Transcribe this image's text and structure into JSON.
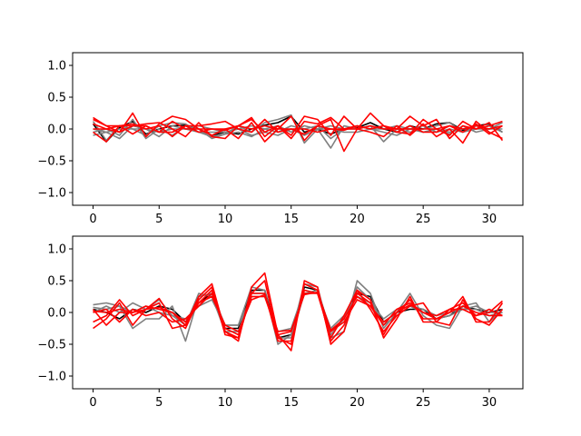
{
  "chart_data": [
    {
      "type": "line",
      "title": "",
      "xlabel": "",
      "ylabel": "",
      "xlim": [
        -1.55,
        32.55
      ],
      "ylim": [
        -1.2,
        1.2
      ],
      "xticks": [
        0,
        5,
        10,
        15,
        20,
        25,
        30
      ],
      "xtick_labels": [
        "0",
        "5",
        "10",
        "15",
        "20",
        "25",
        "30"
      ],
      "yticks": [
        -1.0,
        -0.5,
        0.0,
        0.5,
        1.0
      ],
      "ytick_labels": [
        "−1.0",
        "−0.5",
        "0.0",
        "0.5",
        "1.0"
      ],
      "grid": false,
      "x": [
        0,
        1,
        2,
        3,
        4,
        5,
        6,
        7,
        8,
        9,
        10,
        11,
        12,
        13,
        14,
        15,
        16,
        17,
        18,
        19,
        20,
        21,
        22,
        23,
        24,
        25,
        26,
        27,
        28,
        29,
        30,
        31
      ],
      "series": [
        {
          "color": "#000000",
          "values": [
            0.08,
            -0.2,
            0.02,
            0.12,
            -0.08,
            0.0,
            0.05,
            0.06,
            0.0,
            -0.1,
            -0.05,
            -0.08,
            0.0,
            0.06,
            0.1,
            0.2,
            -0.05,
            0.0,
            -0.08,
            0.0,
            0.02,
            0.1,
            0.0,
            -0.05,
            0.05,
            0.0,
            0.08,
            0.1,
            -0.02,
            0.05,
            0.08,
            -0.05
          ]
        },
        {
          "color": "#808080",
          "values": [
            0.12,
            -0.18,
            0.05,
            0.0,
            -0.1,
            0.05,
            0.1,
            0.08,
            -0.05,
            -0.12,
            -0.08,
            0.05,
            -0.05,
            0.1,
            0.15,
            0.22,
            -0.22,
            0.0,
            -0.3,
            0.05,
            0.0,
            0.05,
            -0.2,
            0.0,
            -0.05,
            0.0,
            0.05,
            0.1,
            -0.05,
            0.0,
            0.05,
            -0.05
          ]
        },
        {
          "color": "#808080",
          "values": [
            -0.05,
            0.0,
            -0.1,
            0.15,
            -0.15,
            0.0,
            -0.1,
            0.05,
            0.0,
            -0.15,
            -0.08,
            -0.05,
            -0.12,
            0.0,
            -0.05,
            0.05,
            0.0,
            0.05,
            -0.15,
            0.0,
            0.05,
            0.0,
            -0.05,
            -0.1,
            0.0,
            -0.05,
            0.0,
            -0.08,
            0.05,
            -0.05,
            0.0,
            0.1
          ]
        },
        {
          "color": "#808080",
          "values": [
            0.0,
            -0.05,
            0.0,
            0.0,
            0.0,
            -0.12,
            0.05,
            0.0,
            0.05,
            0.0,
            -0.05,
            0.0,
            -0.1,
            -0.05,
            -0.1,
            0.0,
            -0.1,
            0.0,
            0.05,
            0.0,
            0.0,
            0.05,
            0.0,
            0.05,
            0.0,
            0.05,
            -0.05,
            0.0,
            -0.05,
            0.05,
            0.0,
            0.05
          ]
        },
        {
          "color": "#808080",
          "values": [
            -0.1,
            -0.05,
            -0.15,
            0.05,
            0.0,
            -0.05,
            0.0,
            0.0,
            -0.05,
            -0.05,
            -0.05,
            0.0,
            0.05,
            0.0,
            0.05,
            -0.05,
            0.05,
            0.0,
            0.0,
            -0.05,
            -0.05,
            0.0,
            0.0,
            0.0,
            0.0,
            -0.05,
            0.0,
            -0.05,
            0.0,
            0.0,
            0.0,
            0.0
          ]
        },
        {
          "color": "#ff0000",
          "values": [
            0.18,
            0.05,
            -0.05,
            0.25,
            -0.12,
            0.08,
            0.2,
            0.15,
            0.0,
            -0.1,
            0.0,
            -0.15,
            0.1,
            -0.2,
            0.0,
            0.2,
            -0.18,
            0.05,
            0.15,
            -0.35,
            0.0,
            0.25,
            0.05,
            0.0,
            0.2,
            0.05,
            0.15,
            -0.15,
            0.05,
            0.0,
            0.1,
            -0.18
          ]
        },
        {
          "color": "#ff0000",
          "values": [
            -0.05,
            -0.2,
            0.05,
            0.05,
            0.08,
            0.1,
            0.0,
            -0.12,
            0.1,
            -0.12,
            -0.15,
            0.05,
            0.15,
            -0.05,
            0.05,
            -0.1,
            0.2,
            0.15,
            -0.1,
            0.2,
            0.0,
            -0.05,
            -0.12,
            0.05,
            -0.1,
            0.08,
            -0.12,
            0.0,
            -0.22,
            0.12,
            -0.05,
            -0.15
          ]
        },
        {
          "color": "#ff0000",
          "values": [
            0.15,
            0.05,
            0.05,
            -0.08,
            0.05,
            -0.05,
            -0.05,
            0.05,
            -0.05,
            0.0,
            0.0,
            0.05,
            0.18,
            -0.12,
            0.05,
            -0.15,
            0.12,
            0.08,
            0.18,
            0.0,
            0.05,
            0.0,
            0.05,
            -0.05,
            -0.08,
            0.15,
            0.0,
            -0.1,
            0.12,
            0.0,
            0.05,
            0.12
          ]
        },
        {
          "color": "#ff0000",
          "values": [
            0.0,
            0.0,
            0.05,
            0.08,
            0.0,
            0.05,
            -0.12,
            0.05,
            0.05,
            0.08,
            0.12,
            0.0,
            -0.05,
            0.15,
            -0.05,
            0.0,
            -0.08,
            0.05,
            0.0,
            -0.02,
            0.05,
            0.0,
            0.05,
            -0.05,
            0.05,
            -0.05,
            -0.05,
            0.05,
            -0.05,
            0.08,
            -0.08,
            0.05
          ]
        },
        {
          "color": "#ff0000",
          "values": [
            0.08,
            0.0,
            -0.05,
            0.05,
            0.05,
            -0.05,
            0.12,
            0.0,
            0.0,
            0.0,
            -0.02,
            0.05,
            0.0,
            0.05,
            0.0,
            0.0,
            0.0,
            -0.05,
            0.0,
            0.0,
            0.0,
            0.05,
            0.0,
            0.0,
            0.0,
            0.0,
            0.0,
            0.05,
            0.0,
            0.05,
            0.0,
            0.05
          ]
        }
      ]
    },
    {
      "type": "line",
      "title": "",
      "xlabel": "",
      "ylabel": "",
      "xlim": [
        -1.55,
        32.55
      ],
      "ylim": [
        -1.2,
        1.2
      ],
      "xticks": [
        0,
        5,
        10,
        15,
        20,
        25,
        30
      ],
      "xtick_labels": [
        "0",
        "5",
        "10",
        "15",
        "20",
        "25",
        "30"
      ],
      "yticks": [
        -1.0,
        -0.5,
        0.0,
        0.5,
        1.0
      ],
      "ytick_labels": [
        "−1.0",
        "−0.5",
        "0.0",
        "0.5",
        "1.0"
      ],
      "grid": false,
      "x": [
        0,
        1,
        2,
        3,
        4,
        5,
        6,
        7,
        8,
        9,
        10,
        11,
        12,
        13,
        14,
        15,
        16,
        17,
        18,
        19,
        20,
        21,
        22,
        23,
        24,
        25,
        26,
        27,
        28,
        29,
        30,
        31
      ],
      "series": [
        {
          "color": "#000000",
          "values": [
            0.05,
            0.0,
            -0.1,
            0.05,
            0.0,
            0.1,
            0.05,
            -0.15,
            0.15,
            0.3,
            -0.25,
            -0.25,
            0.35,
            0.35,
            -0.4,
            -0.35,
            0.4,
            0.35,
            -0.3,
            -0.1,
            0.3,
            0.25,
            -0.15,
            0.0,
            0.05,
            0.05,
            -0.1,
            -0.05,
            0.1,
            0.05,
            0.0,
            0.05
          ]
        },
        {
          "color": "#808080",
          "values": [
            0.12,
            0.15,
            0.1,
            -0.25,
            -0.1,
            -0.1,
            0.1,
            -0.45,
            0.25,
            0.3,
            -0.2,
            -0.2,
            0.4,
            0.35,
            -0.5,
            -0.35,
            0.45,
            0.4,
            -0.4,
            -0.3,
            0.5,
            0.3,
            -0.25,
            0.0,
            0.3,
            -0.05,
            -0.2,
            -0.25,
            0.1,
            0.15,
            -0.15,
            0.05
          ]
        },
        {
          "color": "#808080",
          "values": [
            0.0,
            0.1,
            0.0,
            0.15,
            0.05,
            0.2,
            -0.05,
            -0.2,
            0.3,
            0.25,
            -0.3,
            -0.3,
            0.3,
            0.3,
            -0.4,
            -0.4,
            0.3,
            0.35,
            -0.35,
            -0.1,
            0.4,
            0.2,
            -0.2,
            -0.05,
            0.1,
            0.0,
            -0.1,
            -0.05,
            0.05,
            0.05,
            -0.05,
            0.0
          ]
        },
        {
          "color": "#808080",
          "values": [
            0.08,
            0.05,
            0.1,
            0.0,
            0.1,
            0.0,
            -0.05,
            -0.1,
            0.1,
            0.2,
            -0.2,
            -0.2,
            0.25,
            0.25,
            -0.3,
            -0.25,
            0.35,
            0.3,
            -0.25,
            -0.05,
            0.25,
            0.15,
            -0.1,
            0.05,
            0.1,
            0.05,
            -0.05,
            0.0,
            0.05,
            0.1,
            0.0,
            0.0
          ]
        },
        {
          "color": "#ff0000",
          "values": [
            -0.25,
            -0.1,
            0.15,
            -0.2,
            0.05,
            0.15,
            -0.25,
            -0.2,
            0.25,
            0.45,
            -0.3,
            -0.45,
            0.4,
            0.62,
            -0.35,
            -0.6,
            0.5,
            0.4,
            -0.5,
            -0.3,
            0.35,
            0.2,
            -0.4,
            -0.1,
            0.25,
            -0.15,
            -0.15,
            -0.2,
            0.2,
            -0.1,
            -0.2,
            0.05
          ]
        },
        {
          "color": "#ff0000",
          "values": [
            -0.15,
            -0.05,
            0.2,
            -0.05,
            0.05,
            0.22,
            -0.1,
            -0.25,
            0.2,
            0.4,
            -0.35,
            -0.4,
            0.3,
            0.5,
            -0.4,
            -0.5,
            0.45,
            0.35,
            -0.45,
            -0.2,
            0.3,
            0.15,
            -0.35,
            0.0,
            0.2,
            -0.1,
            -0.1,
            0.0,
            0.25,
            -0.15,
            -0.15,
            0.15
          ]
        },
        {
          "color": "#ff0000",
          "values": [
            0.05,
            -0.2,
            0.0,
            0.0,
            0.1,
            0.05,
            0.0,
            -0.2,
            0.15,
            0.35,
            -0.3,
            -0.4,
            0.3,
            0.3,
            -0.45,
            -0.45,
            0.35,
            0.3,
            -0.4,
            -0.05,
            0.35,
            0.05,
            -0.3,
            -0.05,
            0.1,
            0.15,
            -0.15,
            0.05,
            0.15,
            -0.05,
            0.05,
            -0.05
          ]
        },
        {
          "color": "#ff0000",
          "values": [
            0.0,
            0.05,
            -0.15,
            0.05,
            -0.05,
            0.0,
            -0.15,
            -0.1,
            0.1,
            0.3,
            -0.25,
            -0.35,
            0.25,
            0.25,
            -0.35,
            -0.3,
            0.3,
            0.3,
            -0.3,
            -0.15,
            0.2,
            0.1,
            -0.2,
            0.05,
            0.15,
            0.0,
            -0.05,
            0.05,
            0.05,
            -0.05,
            0.0,
            0.18
          ]
        },
        {
          "color": "#ff0000",
          "values": [
            0.02,
            0.0,
            0.05,
            0.0,
            0.05,
            0.08,
            0.0,
            -0.15,
            0.15,
            0.25,
            -0.2,
            -0.3,
            0.2,
            0.28,
            -0.3,
            -0.28,
            0.28,
            0.32,
            -0.28,
            -0.1,
            0.25,
            0.1,
            -0.15,
            0.0,
            0.12,
            0.0,
            -0.1,
            0.0,
            0.1,
            0.0,
            -0.05,
            -0.05
          ]
        }
      ]
    }
  ]
}
